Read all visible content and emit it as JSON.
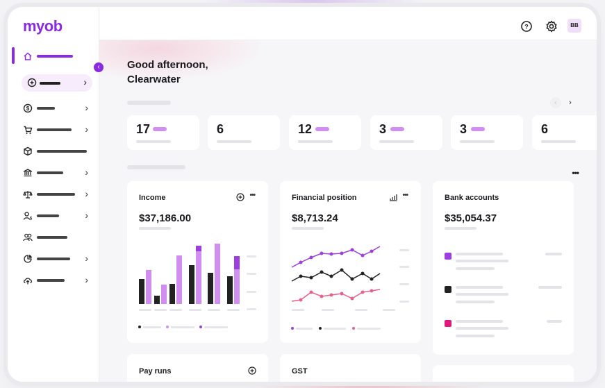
{
  "app": {
    "logo": "myob",
    "user_initials": "BB"
  },
  "colors": {
    "accent": "#8a2be2",
    "bar_dark": "#222222",
    "bar_light": "#d08ef0",
    "bar_mid": "#9d3fe0",
    "pink": "#e9608a",
    "magenta": "#e0197a"
  },
  "greeting": {
    "line1": "Good afternoon,",
    "line2": "Clearwater"
  },
  "stats": [
    {
      "value": "17",
      "has_pill": true
    },
    {
      "value": "6",
      "has_pill": false
    },
    {
      "value": "12",
      "has_pill": true
    },
    {
      "value": "3",
      "has_pill": true
    },
    {
      "value": "3",
      "has_pill": true
    },
    {
      "value": "6",
      "has_pill": false
    }
  ],
  "cards": {
    "income": {
      "title": "Income",
      "amount": "$37,186.00"
    },
    "financial": {
      "title": "Financial position",
      "amount": "$8,713.24"
    },
    "bank": {
      "title": "Bank accounts",
      "amount": "$35,054.37"
    },
    "payruns": {
      "title": "Pay runs"
    },
    "gst": {
      "title": "GST"
    }
  },
  "sidebar_icons": [
    "home-icon",
    "add-icon",
    "dollar-icon",
    "cart-icon",
    "box-icon",
    "bank-icon",
    "scales-icon",
    "person-icon",
    "people-icon",
    "pie-icon",
    "upload-icon"
  ]
}
